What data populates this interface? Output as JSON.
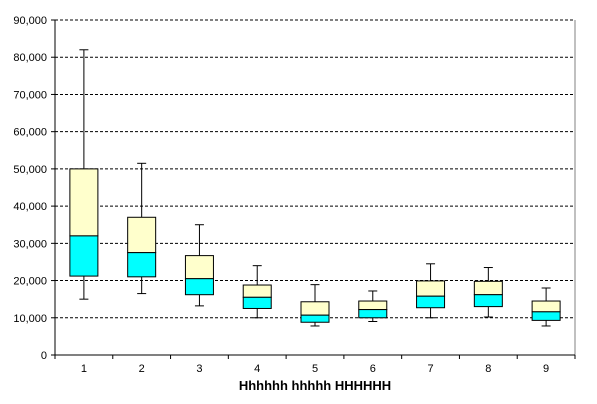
{
  "chart_data": {
    "type": "boxplot",
    "title": "",
    "xlabel": "Hhhhhh hhhhh HHHHHH",
    "ylabel": "",
    "ylim": [
      0,
      90000
    ],
    "yticks": [
      0,
      10000,
      20000,
      30000,
      40000,
      50000,
      60000,
      70000,
      80000,
      90000
    ],
    "ytick_labels": [
      "0",
      "10,000",
      "20,000",
      "30,000",
      "40,000",
      "50,000",
      "60,000",
      "70,000",
      "80,000",
      "90,000"
    ],
    "grid": true,
    "colors": {
      "lower_box": "#00ffff",
      "upper_box": "#ffffcc",
      "grid": "#000000",
      "outline": "#000000"
    },
    "categories": [
      "1",
      "2",
      "3",
      "4",
      "5",
      "6",
      "7",
      "8",
      "9"
    ],
    "boxes": [
      {
        "min": 15000,
        "q1": 21200,
        "median": 32000,
        "q3": 50000,
        "max": 82000
      },
      {
        "min": 16500,
        "q1": 21000,
        "median": 27500,
        "q3": 37000,
        "max": 51500
      },
      {
        "min": 13200,
        "q1": 16200,
        "median": 20500,
        "q3": 26700,
        "max": 35000
      },
      {
        "min": 10000,
        "q1": 12500,
        "median": 15500,
        "q3": 18800,
        "max": 24000
      },
      {
        "min": 7800,
        "q1": 8800,
        "median": 10700,
        "q3": 14300,
        "max": 18900
      },
      {
        "min": 9000,
        "q1": 10000,
        "median": 12200,
        "q3": 14500,
        "max": 17200
      },
      {
        "min": 10000,
        "q1": 12700,
        "median": 15800,
        "q3": 19900,
        "max": 24500
      },
      {
        "min": 10200,
        "q1": 13000,
        "median": 16200,
        "q3": 19800,
        "max": 23500
      },
      {
        "min": 7800,
        "q1": 9300,
        "median": 11600,
        "q3": 14500,
        "max": 18000
      }
    ]
  }
}
